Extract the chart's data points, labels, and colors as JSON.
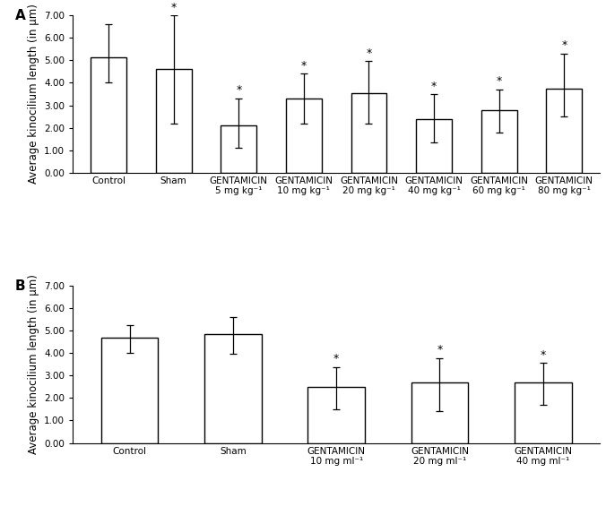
{
  "panel_A": {
    "categories_line1": [
      "Control",
      "Sham",
      "GENTAMICIN",
      "GENTAMICIN",
      "GENTAMICIN",
      "GENTAMICIN",
      "GENTAMICIN",
      "GENTAMICIN"
    ],
    "categories_line2": [
      "",
      "",
      "5 mg kg⁻¹",
      "10 mg kg⁻¹",
      "20 mg kg⁻¹",
      "40 mg kg⁻¹",
      "60 mg kg⁻¹",
      "80 mg kg⁻¹"
    ],
    "values": [
      5.15,
      4.6,
      2.1,
      3.3,
      3.52,
      2.38,
      2.8,
      3.75
    ],
    "errors_upper": [
      1.45,
      2.4,
      1.2,
      1.1,
      1.45,
      1.1,
      0.9,
      1.55
    ],
    "errors_lower": [
      1.15,
      2.4,
      1.0,
      1.1,
      1.35,
      1.05,
      1.0,
      1.25
    ],
    "significant": [
      false,
      true,
      true,
      true,
      true,
      true,
      true,
      true
    ],
    "ylabel": "Average kinocilium length (in μm)",
    "ylim": [
      0,
      7.0
    ],
    "yticks": [
      0.0,
      1.0,
      2.0,
      3.0,
      4.0,
      5.0,
      6.0,
      7.0
    ],
    "panel_label": "A"
  },
  "panel_B": {
    "categories_line1": [
      "Control",
      "Sham",
      "GENTAMICIN",
      "GENTAMICIN",
      "GENTAMICIN"
    ],
    "categories_line2": [
      "",
      "",
      "10 mg ml⁻¹",
      "20 mg ml⁻¹",
      "40 mg ml⁻¹"
    ],
    "values": [
      4.68,
      4.85,
      2.48,
      2.68,
      2.68
    ],
    "errors_upper": [
      0.55,
      0.75,
      0.9,
      1.1,
      0.88
    ],
    "errors_lower": [
      0.68,
      0.88,
      0.98,
      1.28,
      0.98
    ],
    "significant": [
      false,
      false,
      true,
      true,
      true
    ],
    "ylabel": "Average kinocilium length (in μm)",
    "ylim": [
      0,
      7.0
    ],
    "yticks": [
      0.0,
      1.0,
      2.0,
      3.0,
      4.0,
      5.0,
      6.0,
      7.0
    ],
    "panel_label": "B"
  },
  "bar_color": "#ffffff",
  "bar_edgecolor": "#000000",
  "bar_linewidth": 1.0,
  "bar_width": 0.55,
  "errorbar_color": "#000000",
  "errorbar_linewidth": 0.9,
  "errorbar_capsize": 3,
  "tick_fontsize": 7.5,
  "label_fontsize": 8.5,
  "panel_label_fontsize": 11,
  "star_fontsize": 9,
  "background_color": "#ffffff"
}
